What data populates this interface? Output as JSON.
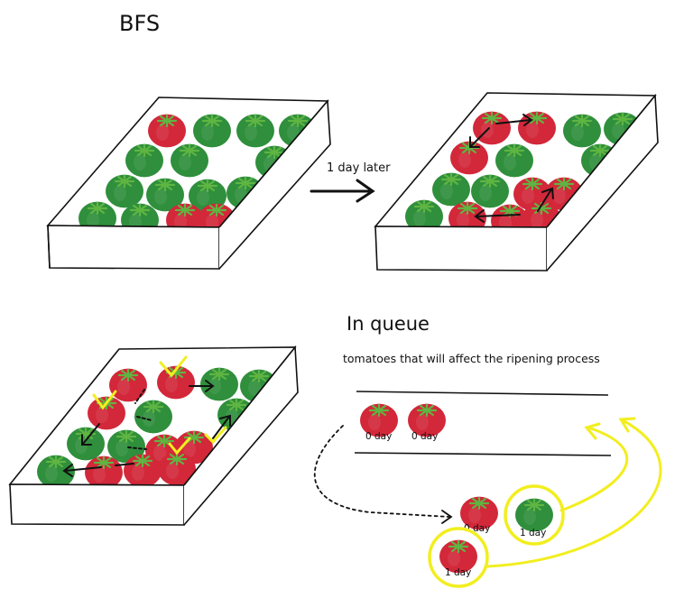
{
  "title": "BFS",
  "transition_label": "1 day later",
  "queue": {
    "heading": "In queue",
    "caption": "tomatoes that will affect the ripening process",
    "items": [
      {
        "label": "0 day"
      },
      {
        "label": "0 day"
      }
    ]
  },
  "dequeued": [
    {
      "label": "0 day",
      "highlight": false
    },
    {
      "label": "1 day",
      "highlight": true
    },
    {
      "label": "1 day",
      "highlight": true
    }
  ],
  "colors": {
    "ripe": "#d2283a",
    "unripe": "#2f8f3c",
    "stem": "#5fb542",
    "highlight": "#f2ee1f",
    "ink": "#111111"
  }
}
